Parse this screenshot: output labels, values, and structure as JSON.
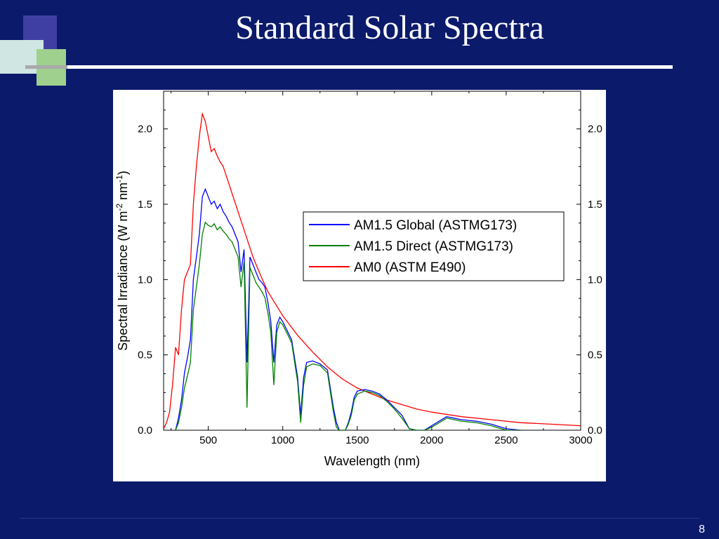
{
  "slide": {
    "title": "Standard Solar Spectra",
    "page_number": "8"
  },
  "chart_data": {
    "type": "line",
    "xlabel": "Wavelength (nm)",
    "ylabel": "Spectral Irradiance (W m-2 nm-1)",
    "ylabel_parts": [
      "Spectral Irradiance (W m",
      "-2",
      " nm",
      "-1",
      ")"
    ],
    "xlim": [
      200,
      3000
    ],
    "ylim": [
      0,
      2.25
    ],
    "x_ticks": [
      "500",
      "1000",
      "1500",
      "2000",
      "2500",
      "3000"
    ],
    "y_ticks": [
      "0.0",
      "0.5",
      "1.0",
      "1.5",
      "2.0"
    ],
    "right_axis_ticks": [
      "0.0",
      "0.5",
      "1.0",
      "1.5",
      "2.0"
    ],
    "legend_position": "upper-right",
    "grid": false,
    "series": [
      {
        "name": "AM1.5 Global (ASTMG173)",
        "color": "#0000ff",
        "x": [
          280,
          300,
          320,
          340,
          360,
          380,
          400,
          420,
          440,
          460,
          480,
          500,
          520,
          540,
          560,
          580,
          600,
          620,
          640,
          660,
          680,
          700,
          720,
          740,
          760,
          780,
          800,
          820,
          840,
          860,
          880,
          900,
          920,
          940,
          960,
          980,
          1000,
          1020,
          1060,
          1100,
          1120,
          1140,
          1160,
          1200,
          1250,
          1300,
          1340,
          1360,
          1380,
          1400,
          1420,
          1440,
          1460,
          1480,
          1500,
          1550,
          1600,
          1650,
          1700,
          1750,
          1800,
          1850,
          1900,
          1950,
          2000,
          2050,
          2100,
          2150,
          2200,
          2300,
          2400,
          2500,
          2600
        ],
        "y": [
          0,
          0.08,
          0.2,
          0.38,
          0.48,
          0.6,
          1.0,
          1.15,
          1.3,
          1.55,
          1.6,
          1.55,
          1.5,
          1.52,
          1.47,
          1.5,
          1.45,
          1.42,
          1.38,
          1.35,
          1.3,
          1.25,
          1.05,
          1.2,
          0.45,
          1.15,
          1.1,
          1.05,
          1.0,
          0.98,
          0.95,
          0.85,
          0.72,
          0.45,
          0.7,
          0.75,
          0.72,
          0.68,
          0.6,
          0.35,
          0.1,
          0.35,
          0.45,
          0.46,
          0.44,
          0.4,
          0.15,
          0.05,
          0.0,
          0.0,
          0.0,
          0.05,
          0.12,
          0.22,
          0.26,
          0.27,
          0.26,
          0.24,
          0.2,
          0.15,
          0.1,
          0.01,
          0.0,
          0.0,
          0.03,
          0.06,
          0.09,
          0.08,
          0.07,
          0.06,
          0.04,
          0.01,
          0.0
        ]
      },
      {
        "name": "AM1.5 Direct (ASTMG173)",
        "color": "#008000",
        "x": [
          280,
          300,
          320,
          340,
          360,
          380,
          400,
          420,
          440,
          460,
          480,
          500,
          520,
          540,
          560,
          580,
          600,
          620,
          640,
          660,
          680,
          700,
          720,
          740,
          760,
          780,
          800,
          820,
          840,
          860,
          880,
          900,
          920,
          940,
          960,
          980,
          1000,
          1020,
          1060,
          1100,
          1120,
          1140,
          1160,
          1200,
          1250,
          1300,
          1340,
          1360,
          1380,
          1400,
          1420,
          1440,
          1460,
          1480,
          1500,
          1550,
          1600,
          1650,
          1700,
          1750,
          1800,
          1850,
          1900,
          1950,
          2000,
          2050,
          2100,
          2150,
          2200,
          2300,
          2400,
          2500,
          2600
        ],
        "y": [
          0,
          0.05,
          0.15,
          0.28,
          0.36,
          0.45,
          0.8,
          0.95,
          1.1,
          1.3,
          1.38,
          1.36,
          1.35,
          1.37,
          1.33,
          1.35,
          1.32,
          1.3,
          1.27,
          1.25,
          1.2,
          1.15,
          0.95,
          1.12,
          0.15,
          1.08,
          1.03,
          0.98,
          0.95,
          0.92,
          0.88,
          0.78,
          0.65,
          0.3,
          0.65,
          0.72,
          0.7,
          0.66,
          0.58,
          0.32,
          0.05,
          0.3,
          0.42,
          0.44,
          0.43,
          0.38,
          0.12,
          0.02,
          0.0,
          0.0,
          0.0,
          0.04,
          0.1,
          0.2,
          0.24,
          0.26,
          0.25,
          0.23,
          0.19,
          0.14,
          0.08,
          0.01,
          0.0,
          0.0,
          0.02,
          0.05,
          0.08,
          0.07,
          0.06,
          0.05,
          0.03,
          0.0,
          0.0
        ]
      },
      {
        "name": "AM0 (ASTM E490)",
        "color": "#ff0000",
        "x": [
          200,
          220,
          240,
          260,
          280,
          300,
          320,
          340,
          360,
          380,
          400,
          420,
          440,
          460,
          480,
          500,
          520,
          540,
          560,
          580,
          600,
          650,
          700,
          750,
          800,
          850,
          900,
          950,
          1000,
          1100,
          1200,
          1300,
          1400,
          1500,
          1600,
          1700,
          1800,
          1900,
          2000,
          2200,
          2400,
          2600,
          2800,
          3000
        ],
        "y": [
          0.01,
          0.05,
          0.12,
          0.3,
          0.55,
          0.5,
          0.8,
          1.0,
          1.05,
          1.1,
          1.5,
          1.75,
          1.95,
          2.1,
          2.05,
          1.95,
          1.85,
          1.87,
          1.82,
          1.78,
          1.75,
          1.6,
          1.45,
          1.3,
          1.15,
          1.03,
          0.92,
          0.84,
          0.76,
          0.63,
          0.52,
          0.42,
          0.34,
          0.28,
          0.24,
          0.2,
          0.17,
          0.14,
          0.12,
          0.09,
          0.07,
          0.05,
          0.04,
          0.03
        ]
      }
    ]
  }
}
